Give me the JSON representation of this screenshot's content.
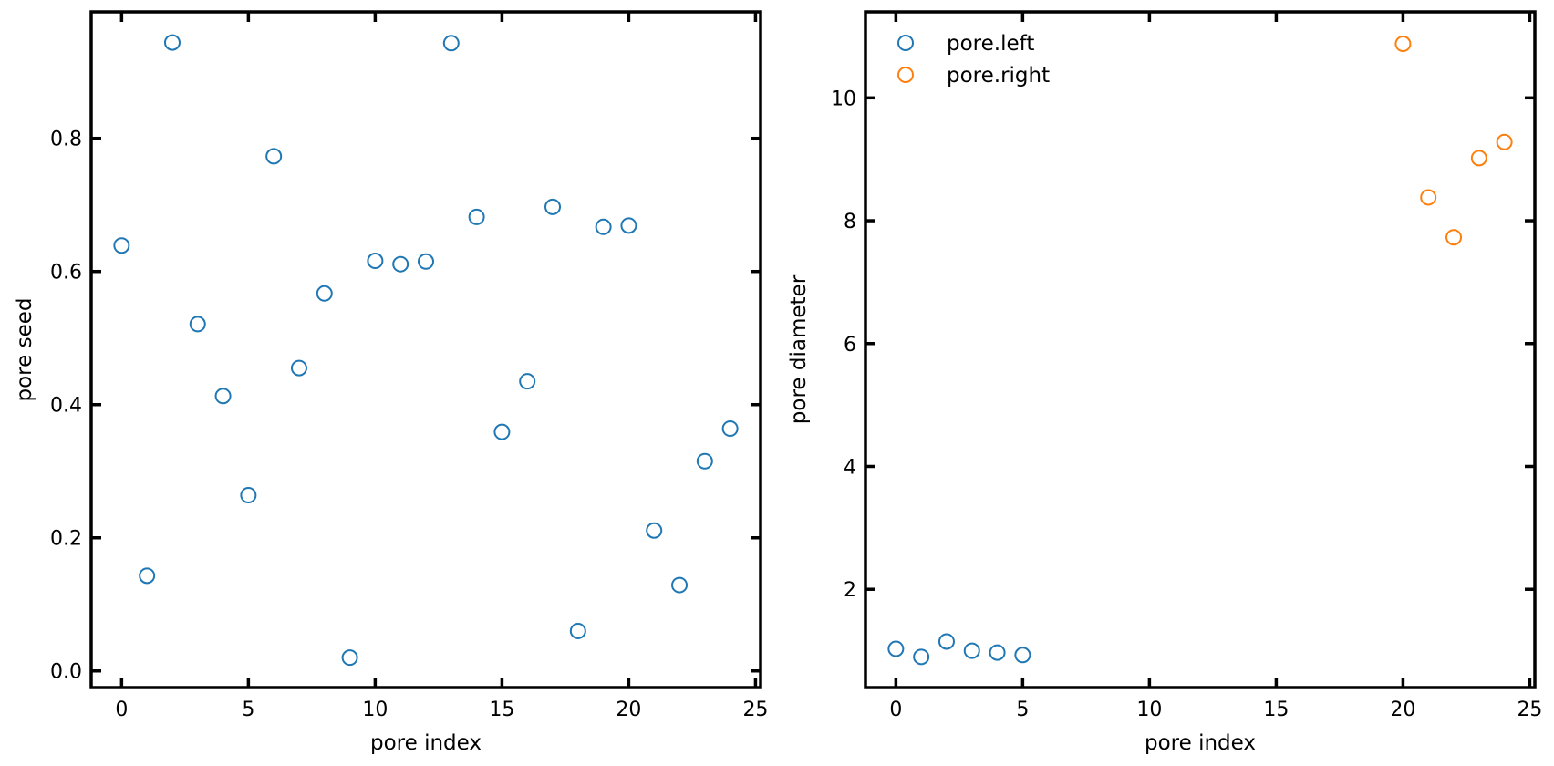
{
  "chart_data": [
    {
      "type": "scatter",
      "xlabel": "pore index",
      "ylabel": "pore seed",
      "xlim": [
        -1.2,
        25.2
      ],
      "ylim": [
        -0.025,
        0.99
      ],
      "xticks": [
        0,
        5,
        10,
        15,
        20,
        25
      ],
      "yticks": [
        0.0,
        0.2,
        0.4,
        0.6,
        0.8
      ],
      "ytick_labels": [
        "0.0",
        "0.2",
        "0.4",
        "0.6",
        "0.8"
      ],
      "legend": null,
      "series": [
        {
          "color": "#1f77b4",
          "marker": "open-circle",
          "x": [
            0,
            1,
            2,
            3,
            4,
            5,
            6,
            7,
            8,
            9,
            10,
            11,
            12,
            13,
            14,
            15,
            16,
            17,
            18,
            19,
            20,
            21,
            22,
            23,
            24
          ],
          "y": [
            0.639,
            0.143,
            0.944,
            0.521,
            0.413,
            0.264,
            0.773,
            0.455,
            0.567,
            0.02,
            0.616,
            0.611,
            0.615,
            0.943,
            0.682,
            0.359,
            0.435,
            0.697,
            0.06,
            0.667,
            0.669,
            0.211,
            0.129,
            0.315,
            0.364
          ]
        }
      ]
    },
    {
      "type": "scatter",
      "xlabel": "pore index",
      "ylabel": "pore diameter",
      "xlim": [
        -1.2,
        25.2
      ],
      "ylim": [
        0.4,
        11.4
      ],
      "xticks": [
        0,
        5,
        10,
        15,
        20,
        25
      ],
      "yticks": [
        2,
        4,
        6,
        8,
        10
      ],
      "ytick_labels": [
        "2",
        "4",
        "6",
        "8",
        "10"
      ],
      "legend": "top-left",
      "series": [
        {
          "name": "pore.left",
          "color": "#1f77b4",
          "marker": "open-circle",
          "x": [
            0,
            1,
            2,
            3,
            4,
            5
          ],
          "y": [
            1.03,
            0.9,
            1.15,
            1.0,
            0.97,
            0.93
          ]
        },
        {
          "name": "pore.right",
          "color": "#ff7f0e",
          "marker": "open-circle",
          "x": [
            20,
            21,
            22,
            23,
            24
          ],
          "y": [
            10.88,
            8.38,
            7.73,
            9.02,
            9.28
          ]
        }
      ]
    }
  ]
}
